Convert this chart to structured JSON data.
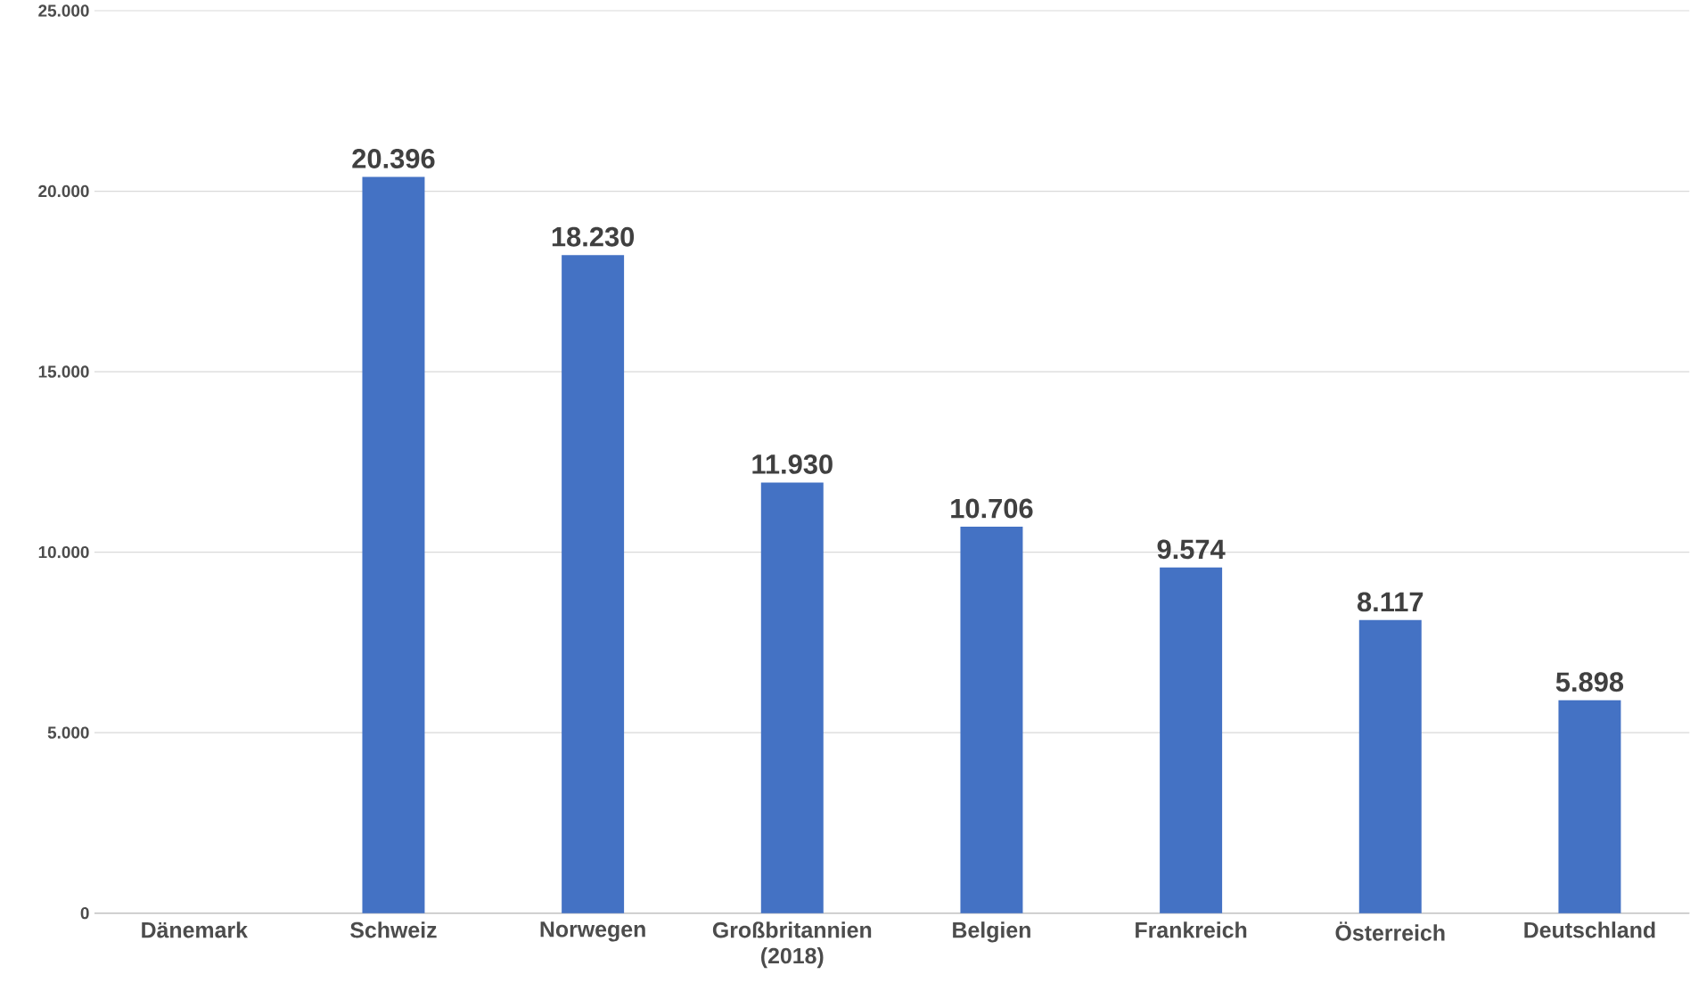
{
  "chart_data": {
    "type": "bar",
    "categories": [
      "Dänemark",
      "Schweiz",
      "Norwegen",
      "Großbritannien (2018)",
      "Belgien",
      "Frankreich",
      "Österreich",
      "Deutschland"
    ],
    "values": [
      null,
      20396,
      18230,
      11930,
      10706,
      9574,
      8117,
      5898
    ],
    "value_labels": [
      null,
      "20.396",
      "18.230",
      "11.930",
      "10.706",
      "9.574",
      "8.117",
      "5.898"
    ],
    "color": "#4472c4",
    "ylim": [
      0,
      25000
    ],
    "yticks": [
      0,
      {
        "value": 5000,
        "label": "5.000"
      },
      {
        "value": 10000,
        "label": "10.000"
      },
      {
        "value": 15000,
        "label": "15.000"
      },
      {
        "value": 20000,
        "label": "20.000"
      },
      {
        "value": 25000,
        "label": "25.000"
      }
    ],
    "grid": "y"
  }
}
